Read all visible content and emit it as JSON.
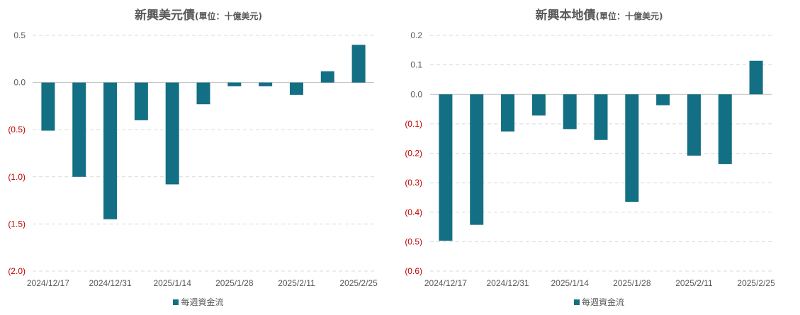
{
  "chart_data": [
    {
      "type": "bar",
      "title": "新興美元債",
      "subtitle": "(單位：十億美元)",
      "categories": [
        "2024/12/17",
        "2024/12/24",
        "2024/12/31",
        "2025/1/7",
        "2025/1/14",
        "2025/1/21",
        "2025/1/28",
        "2025/2/4",
        "2025/2/11",
        "2025/2/18",
        "2025/2/25"
      ],
      "x_tick_labels": [
        "2024/12/17",
        "",
        "2024/12/31",
        "",
        "2025/1/14",
        "",
        "2025/1/28",
        "",
        "2025/2/11",
        "",
        "2025/2/25"
      ],
      "series": [
        {
          "name": "每週資金流",
          "values": [
            -0.51,
            -1.0,
            -1.45,
            -0.4,
            -1.08,
            -0.23,
            -0.04,
            -0.04,
            -0.13,
            0.12,
            0.4
          ]
        }
      ],
      "ylim": [
        -2.0,
        0.5
      ],
      "y_ticks": [
        0.5,
        0.0,
        -0.5,
        -1.0,
        -1.5,
        -2.0
      ],
      "y_tick_labels": [
        "0.5",
        "0.0",
        "(0.5)",
        "(1.0)",
        "(1.5)",
        "(2.0)"
      ],
      "grid": true,
      "legend_position": "bottom"
    },
    {
      "type": "bar",
      "title": "新興本地債",
      "subtitle": "(單位：十億美元)",
      "categories": [
        "2024/12/17",
        "2024/12/24",
        "2024/12/31",
        "2025/1/7",
        "2025/1/14",
        "2025/1/21",
        "2025/1/28",
        "2025/2/4",
        "2025/2/11",
        "2025/2/18",
        "2025/2/25"
      ],
      "x_tick_labels": [
        "2024/12/17",
        "",
        "2024/12/31",
        "",
        "2025/1/14",
        "",
        "2025/1/28",
        "",
        "2025/2/11",
        "",
        "2025/2/25"
      ],
      "series": [
        {
          "name": "每週資金流",
          "values": [
            -0.497,
            -0.443,
            -0.126,
            -0.072,
            -0.118,
            -0.155,
            -0.365,
            -0.037,
            -0.208,
            -0.237,
            0.114
          ]
        }
      ],
      "ylim": [
        -0.6,
        0.2
      ],
      "y_ticks": [
        0.2,
        0.1,
        0.0,
        -0.1,
        -0.2,
        -0.3,
        -0.4,
        -0.5,
        -0.6
      ],
      "y_tick_labels": [
        "0.2",
        "0.1",
        "0.0",
        "(0.1)",
        "(0.2)",
        "(0.3)",
        "(0.4)",
        "(0.5)",
        "(0.6)"
      ],
      "grid": true,
      "legend_position": "bottom"
    }
  ],
  "colors": {
    "bar": "#136f83",
    "negative_tick": "#c00000",
    "positive_tick": "#595959",
    "grid": "#d9d9d9"
  }
}
